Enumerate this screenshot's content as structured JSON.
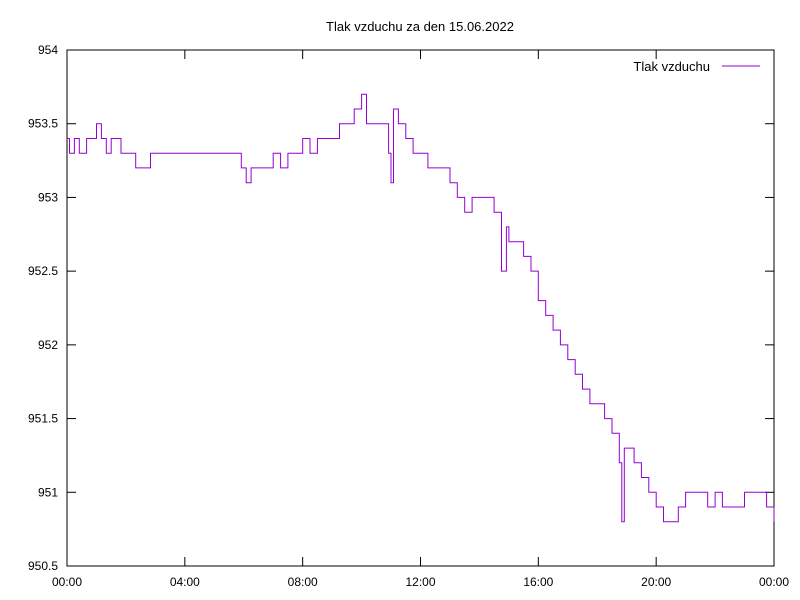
{
  "chart_data": {
    "type": "line",
    "title": "Tlak vzduchu za den 15.06.2022",
    "xlabel": "",
    "ylabel": "",
    "xlim": [
      "00:00",
      "24:00"
    ],
    "ylim": [
      950.5,
      954
    ],
    "x_ticks": [
      "00:00",
      "04:00",
      "08:00",
      "12:00",
      "16:00",
      "20:00",
      "00:00"
    ],
    "y_ticks": [
      "950.5",
      "951",
      "951.5",
      "952",
      "952.5",
      "953",
      "953.5",
      "954"
    ],
    "grid": false,
    "legend_position": "top-right",
    "colors": {
      "series": "#9400d3",
      "frame": "#000000"
    },
    "series": [
      {
        "name": "Tlak vzduchu",
        "x": [
          "00:00",
          "00:05",
          "00:15",
          "00:25",
          "00:40",
          "00:50",
          "01:00",
          "01:10",
          "01:20",
          "01:30",
          "01:40",
          "01:50",
          "02:00",
          "02:10",
          "02:20",
          "02:30",
          "02:40",
          "02:50",
          "03:00",
          "03:15",
          "03:30",
          "03:45",
          "04:00",
          "04:20",
          "04:40",
          "05:00",
          "05:20",
          "05:40",
          "05:55",
          "06:05",
          "06:15",
          "06:30",
          "06:45",
          "07:00",
          "07:15",
          "07:30",
          "07:45",
          "08:00",
          "08:15",
          "08:30",
          "08:45",
          "09:00",
          "09:15",
          "09:30",
          "09:45",
          "10:00",
          "10:10",
          "10:20",
          "10:30",
          "10:45",
          "10:55",
          "11:00",
          "11:05",
          "11:15",
          "11:30",
          "11:45",
          "12:00",
          "12:15",
          "12:30",
          "12:45",
          "13:00",
          "13:15",
          "13:30",
          "13:45",
          "14:00",
          "14:15",
          "14:30",
          "14:45",
          "14:55",
          "15:00",
          "15:10",
          "15:20",
          "15:30",
          "15:45",
          "16:00",
          "16:15",
          "16:30",
          "16:45",
          "17:00",
          "17:15",
          "17:30",
          "17:45",
          "18:00",
          "18:15",
          "18:30",
          "18:45",
          "18:50",
          "18:55",
          "19:00",
          "19:15",
          "19:30",
          "19:45",
          "20:00",
          "20:15",
          "20:30",
          "20:45",
          "21:00",
          "21:15",
          "21:30",
          "21:45",
          "22:00",
          "22:15",
          "22:30",
          "22:45",
          "23:00",
          "23:15",
          "23:30",
          "23:45",
          "24:00"
        ],
        "values": [
          953.4,
          953.3,
          953.4,
          953.3,
          953.4,
          953.4,
          953.5,
          953.4,
          953.3,
          953.4,
          953.4,
          953.3,
          953.3,
          953.3,
          953.2,
          953.2,
          953.2,
          953.3,
          953.3,
          953.3,
          953.3,
          953.3,
          953.3,
          953.3,
          953.3,
          953.3,
          953.3,
          953.3,
          953.2,
          953.1,
          953.2,
          953.2,
          953.2,
          953.3,
          953.2,
          953.3,
          953.3,
          953.4,
          953.3,
          953.4,
          953.4,
          953.4,
          953.5,
          953.5,
          953.6,
          953.7,
          953.5,
          953.5,
          953.5,
          953.5,
          953.3,
          953.1,
          953.6,
          953.5,
          953.4,
          953.3,
          953.3,
          953.2,
          953.2,
          953.2,
          953.1,
          953.0,
          952.9,
          953.0,
          953.0,
          953.0,
          952.9,
          952.5,
          952.8,
          952.7,
          952.7,
          952.7,
          952.6,
          952.5,
          952.3,
          952.2,
          952.1,
          952.0,
          951.9,
          951.8,
          951.7,
          951.6,
          951.6,
          951.5,
          951.4,
          951.2,
          950.8,
          951.3,
          951.3,
          951.2,
          951.1,
          951.0,
          950.9,
          950.8,
          950.8,
          950.9,
          951.0,
          951.0,
          951.0,
          950.9,
          951.0,
          950.9,
          950.9,
          950.9,
          951.0,
          951.0,
          951.0,
          950.9,
          950.8
        ]
      }
    ]
  }
}
